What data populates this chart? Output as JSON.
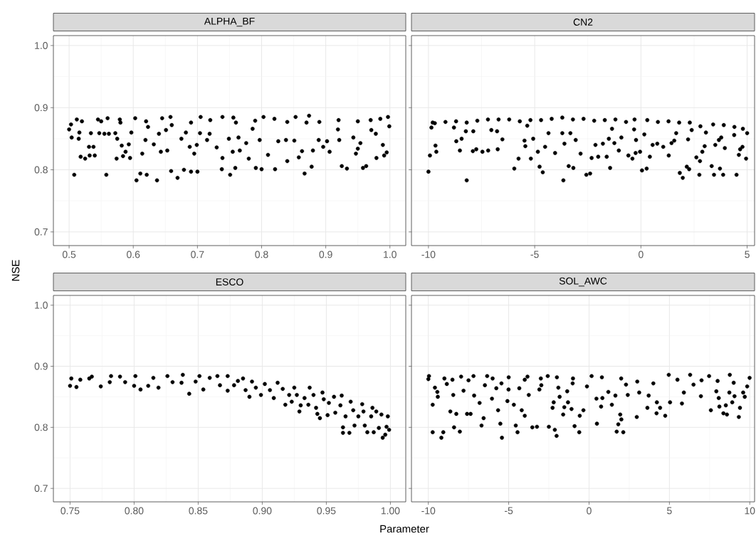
{
  "chart_data": [
    {
      "type": "scatter",
      "title": "ALPHA_BF",
      "ylabel": "NSE",
      "color": "#000000",
      "marker": "circle",
      "grid": true,
      "xlim": [
        0.4755,
        1.0247
      ],
      "ylim": [
        0.678,
        1.016
      ],
      "xticks": [
        0.5,
        0.6,
        0.7,
        0.8,
        0.9,
        {
          "value": 1,
          "label": "1.0"
        }
      ],
      "yticks": [
        0.7,
        0.8,
        0.9,
        {
          "value": 1,
          "label": "1.0"
        }
      ],
      "x": [
        0.508,
        0.5,
        0.504,
        0.503,
        0.512,
        0.516,
        0.515,
        0.518,
        0.525,
        0.531,
        0.532,
        0.534,
        0.538,
        0.54,
        0.545,
        0.547,
        0.558,
        0.555,
        0.562,
        0.56,
        0.572,
        0.575,
        0.574,
        0.579,
        0.582,
        0.584,
        0.588,
        0.593,
        0.595,
        0.597,
        0.603,
        0.605,
        0.611,
        0.614,
        0.619,
        0.621,
        0.623,
        0.632,
        0.637,
        0.64,
        0.643,
        0.645,
        0.653,
        0.651,
        0.658,
        0.659,
        0.669,
        0.675,
        0.679,
        0.682,
        0.688,
        0.69,
        0.695,
        0.7,
        0.699,
        0.704,
        0.705,
        0.715,
        0.719,
        0.73,
        0.738,
        0.739,
        0.739,
        0.749,
        0.751,
        0.755,
        0.756,
        0.759,
        0.764,
        0.766,
        0.776,
        0.78,
        0.786,
        0.791,
        0.797,
        0.8,
        0.803,
        0.81,
        0.821,
        0.826,
        0.838,
        0.84,
        0.851,
        0.853,
        0.858,
        0.863,
        0.867,
        0.874,
        0.878,
        0.88,
        0.889,
        0.896,
        0.902,
        0.906,
        0.919,
        0.921,
        0.925,
        0.933,
        0.943,
        0.947,
        0.95,
        0.954,
        0.958,
        0.963,
        0.971,
        0.979,
        0.978,
        0.989,
        0.991,
        0.995,
        0.999,
        0.997,
        0.52,
        0.55,
        0.58,
        0.62,
        0.66,
        0.69,
        0.72,
        0.76,
        0.79,
        0.82,
        0.84,
        0.87,
        0.89,
        0.92,
        0.95,
        0.97,
        0.985
      ],
      "values": [
        0.792,
        0.865,
        0.852,
        0.873,
        0.881,
        0.86,
        0.85,
        0.821,
        0.818,
        0.837,
        0.823,
        0.859,
        0.837,
        0.823,
        0.881,
        0.859,
        0.792,
        0.858,
        0.858,
        0.883,
        0.859,
        0.85,
        0.818,
        0.881,
        0.839,
        0.822,
        0.829,
        0.841,
        0.819,
        0.86,
        0.883,
        0.783,
        0.794,
        0.826,
        0.848,
        0.792,
        0.869,
        0.841,
        0.783,
        0.858,
        0.829,
        0.883,
        0.831,
        0.864,
        0.885,
        0.798,
        0.787,
        0.85,
        0.8,
        0.86,
        0.837,
        0.797,
        0.826,
        0.797,
        0.84,
        0.859,
        0.885,
        0.848,
        0.858,
        0.836,
        0.801,
        0.819,
        0.885,
        0.85,
        0.792,
        0.829,
        0.884,
        0.803,
        0.852,
        0.831,
        0.843,
        0.818,
        0.866,
        0.803,
        0.848,
        0.801,
        0.885,
        0.824,
        0.801,
        0.846,
        0.848,
        0.814,
        0.847,
        0.885,
        0.82,
        0.83,
        0.794,
        0.887,
        0.805,
        0.831,
        0.848,
        0.837,
        0.846,
        0.829,
        0.865,
        0.848,
        0.806,
        0.802,
        0.852,
        0.826,
        0.834,
        0.843,
        0.803,
        0.806,
        0.864,
        0.819,
        0.858,
        0.84,
        0.823,
        0.828,
        0.87,
        0.885,
        0.878,
        0.878,
        0.876,
        0.878,
        0.872,
        0.876,
        0.88,
        0.876,
        0.879,
        0.882,
        0.877,
        0.876,
        0.877,
        0.88,
        0.878,
        0.88,
        0.882
      ]
    },
    {
      "type": "scatter",
      "title": "CN2",
      "color": "#000000",
      "marker": "circle",
      "grid": true,
      "tick_labels": "x",
      "xlim": [
        -10.8,
        5.35
      ],
      "ylim": [
        0.678,
        1.016
      ],
      "xticks": [
        -10,
        -5,
        0,
        5
      ],
      "yticks": [
        0.7,
        0.8,
        0.9,
        1
      ],
      "x": [
        -10,
        -9.93,
        -9.86,
        -9.67,
        -9.63,
        -9.8,
        -8.8,
        -8.69,
        -8.52,
        -8.44,
        -8.24,
        -8.2,
        -7.91,
        -7.89,
        -7.75,
        -7.46,
        -7.19,
        -7.04,
        -6.74,
        -6.77,
        -6.52,
        -5.96,
        -5.76,
        -5.48,
        -5.44,
        -5.35,
        -5.18,
        -5.07,
        -4.85,
        -4.77,
        -4.62,
        -4.51,
        -4.35,
        -4.04,
        -3.7,
        -3.65,
        -3.6,
        -3.4,
        -3.32,
        -3.18,
        -3.07,
        -2.84,
        -2.57,
        -2.39,
        -2.32,
        -2.14,
        -2.01,
        -1.79,
        -1.61,
        -1.51,
        -1.45,
        -1.36,
        -1.25,
        -1.04,
        -0.92,
        -0.59,
        -0.4,
        -0.32,
        -0.23,
        -0.25,
        -0.04,
        0.05,
        0.16,
        0.27,
        0.42,
        0.55,
        0.77,
        1.05,
        1.31,
        1.44,
        1.57,
        1.66,
        1.83,
        1.97,
        2.16,
        2.27,
        2.22,
        2.39,
        2.61,
        2.78,
        2.75,
        2.89,
        3.0,
        3.06,
        3.33,
        3.44,
        3.5,
        3.67,
        3.78,
        3.72,
        3.87,
        3.95,
        4.39,
        4.5,
        4.61,
        4.67,
        4.78,
        4.95,
        5.0,
        -9.7,
        -9.2,
        -8.7,
        -8.2,
        -7.7,
        -7.2,
        -6.7,
        -6.2,
        -5.7,
        -5.2,
        -4.7,
        -4.2,
        -3.7,
        -3.2,
        -2.7,
        -2.2,
        -1.7,
        -1.2,
        -0.7,
        -0.3,
        0.3,
        0.8,
        1.3,
        1.8,
        2.3,
        2.8,
        3.4,
        3.9,
        4.4,
        4.8
      ],
      "values": [
        0.797,
        0.823,
        0.868,
        0.839,
        0.829,
        0.876,
        0.868,
        0.846,
        0.831,
        0.85,
        0.862,
        0.783,
        0.83,
        0.862,
        0.833,
        0.829,
        0.831,
        0.864,
        0.833,
        0.862,
        0.849,
        0.802,
        0.818,
        0.847,
        0.838,
        0.871,
        0.818,
        0.85,
        0.829,
        0.805,
        0.796,
        0.837,
        0.859,
        0.827,
        0.859,
        0.783,
        0.842,
        0.806,
        0.859,
        0.803,
        0.848,
        0.826,
        0.792,
        0.794,
        0.819,
        0.84,
        0.821,
        0.842,
        0.821,
        0.85,
        0.803,
        0.866,
        0.843,
        0.831,
        0.852,
        0.823,
        0.818,
        0.865,
        0.848,
        0.827,
        0.829,
        0.799,
        0.857,
        0.802,
        0.821,
        0.84,
        0.842,
        0.837,
        0.823,
        0.843,
        0.847,
        0.859,
        0.795,
        0.787,
        0.805,
        0.801,
        0.849,
        0.864,
        0.82,
        0.814,
        0.792,
        0.829,
        0.838,
        0.86,
        0.806,
        0.792,
        0.84,
        0.848,
        0.852,
        0.802,
        0.792,
        0.835,
        0.856,
        0.792,
        0.824,
        0.833,
        0.837,
        0.818,
        0.859,
        0.875,
        0.877,
        0.878,
        0.876,
        0.879,
        0.881,
        0.881,
        0.881,
        0.878,
        0.88,
        0.88,
        0.882,
        0.884,
        0.881,
        0.882,
        0.879,
        0.88,
        0.881,
        0.877,
        0.881,
        0.88,
        0.877,
        0.878,
        0.876,
        0.876,
        0.87,
        0.873,
        0.872,
        0.869,
        0.866
      ]
    },
    {
      "type": "scatter",
      "title": "ESCO",
      "xlabel": "Parameter",
      "color": "#000000",
      "marker": "circle",
      "grid": true,
      "xlim": [
        0.737,
        1.012
      ],
      "ylim": [
        0.678,
        1.016
      ],
      "xticks": [
        0.75,
        {
          "value": 0.8,
          "label": "0.80"
        },
        0.85,
        {
          "value": 0.9,
          "label": "0.90"
        },
        0.95,
        {
          "value": 1,
          "label": "1.00"
        }
      ],
      "yticks": [
        0.7,
        0.8,
        0.9,
        {
          "value": 1,
          "label": "1.0"
        }
      ],
      "x": [
        0.75,
        0.751,
        0.755,
        0.758,
        0.765,
        0.767,
        0.774,
        0.781,
        0.782,
        0.789,
        0.793,
        0.8,
        0.801,
        0.805,
        0.811,
        0.815,
        0.819,
        0.826,
        0.83,
        0.838,
        0.837,
        0.843,
        0.848,
        0.851,
        0.854,
        0.859,
        0.865,
        0.867,
        0.873,
        0.873,
        0.878,
        0.881,
        0.885,
        0.887,
        0.89,
        0.892,
        0.895,
        0.899,
        0.902,
        0.906,
        0.909,
        0.912,
        0.916,
        0.918,
        0.921,
        0.923,
        0.925,
        0.927,
        0.929,
        0.93,
        0.933,
        0.936,
        0.937,
        0.94,
        0.942,
        0.943,
        0.945,
        0.947,
        0.948,
        0.951,
        0.952,
        0.956,
        0.957,
        0.962,
        0.961,
        0.963,
        0.963,
        0.965,
        0.968,
        0.969,
        0.971,
        0.972,
        0.975,
        0.978,
        0.979,
        0.98,
        0.982,
        0.985,
        0.986,
        0.987,
        0.989,
        0.991,
        0.993,
        0.994,
        0.996,
        0.997,
        0.998,
        0.999
      ],
      "values": [
        0.868,
        0.88,
        0.866,
        0.878,
        0.88,
        0.883,
        0.867,
        0.874,
        0.884,
        0.883,
        0.874,
        0.868,
        0.884,
        0.862,
        0.868,
        0.881,
        0.865,
        0.884,
        0.874,
        0.886,
        0.873,
        0.855,
        0.875,
        0.884,
        0.862,
        0.881,
        0.884,
        0.869,
        0.884,
        0.86,
        0.869,
        0.876,
        0.88,
        0.861,
        0.85,
        0.875,
        0.865,
        0.853,
        0.871,
        0.861,
        0.848,
        0.873,
        0.863,
        0.837,
        0.853,
        0.842,
        0.865,
        0.853,
        0.826,
        0.836,
        0.848,
        0.837,
        0.865,
        0.853,
        0.832,
        0.822,
        0.815,
        0.857,
        0.846,
        0.82,
        0.84,
        0.85,
        0.824,
        0.852,
        0.836,
        0.8,
        0.791,
        0.818,
        0.791,
        0.842,
        0.828,
        0.803,
        0.818,
        0.838,
        0.826,
        0.803,
        0.792,
        0.818,
        0.832,
        0.792,
        0.826,
        0.799,
        0.821,
        0.783,
        0.788,
        0.801,
        0.818,
        0.796
      ]
    },
    {
      "type": "scatter",
      "title": "SOL_AWC",
      "color": "#000000",
      "marker": "circle",
      "grid": true,
      "tick_labels": "x",
      "xlim": [
        -11.05,
        10.3
      ],
      "ylim": [
        0.678,
        1.016
      ],
      "xticks": [
        -10,
        -5,
        0,
        5,
        10
      ],
      "yticks": [
        0.7,
        0.8,
        0.9,
        1
      ],
      "x": [
        -9.96,
        -10.0,
        -9.73,
        -9.73,
        -9.59,
        -9.41,
        -9.44,
        -9.19,
        -9.07,
        -9.0,
        -8.85,
        -8.63,
        -8.45,
        -8.4,
        -8.26,
        -8.04,
        -7.96,
        -7.81,
        -7.59,
        -7.37,
        -7.15,
        -7.19,
        -6.81,
        -6.69,
        -6.56,
        -6.48,
        -6.34,
        -6.04,
        -5.77,
        -5.66,
        -5.52,
        -5.42,
        -5.45,
        -5.08,
        -5.01,
        -4.68,
        -4.56,
        -4.45,
        -4.34,
        -4.19,
        -4.0,
        -3.83,
        -3.75,
        -3.53,
        -3.24,
        -3.09,
        -2.97,
        -2.57,
        -2.5,
        -2.27,
        -2.2,
        -2.13,
        -2.02,
        -1.91,
        -1.83,
        -1.61,
        -1.54,
        -1.31,
        -1.36,
        -1.09,
        -1.02,
        -0.9,
        -0.61,
        -0.58,
        -0.35,
        -0.13,
        0.16,
        0.49,
        0.46,
        0.75,
        0.83,
        1.2,
        1.42,
        1.64,
        1.72,
        1.82,
        1.94,
        2.01,
        2.13,
        2.3,
        2.41,
        2.97,
        3.12,
        3.63,
        3.71,
        4.22,
        4.2,
        4.42,
        4.74,
        5.04,
        4.96,
        5.78,
        5.9,
        6.29,
        6.96,
        7.47,
        7.58,
        7.92,
        8.11,
        8.07,
        8.36,
        8.58,
        8.51,
        8.73,
        8.76,
        8.91,
        9.05,
        9.32,
        9.39,
        9.59,
        9.69,
        9.84,
        9.99,
        -8.5,
        -7.5,
        -6.0,
        -5.0,
        -4.0,
        -3.0,
        -2.0,
        -1.0,
        0.8,
        2.0,
        3.0,
        4.0,
        5.5,
        6.5,
        7.0,
        8.0,
        9.0
      ],
      "values": [
        0.884,
        0.879,
        0.837,
        0.792,
        0.865,
        0.85,
        0.858,
        0.783,
        0.792,
        0.88,
        0.871,
        0.826,
        0.853,
        0.8,
        0.822,
        0.793,
        0.883,
        0.86,
        0.822,
        0.822,
        0.852,
        0.884,
        0.84,
        0.803,
        0.815,
        0.869,
        0.884,
        0.847,
        0.864,
        0.828,
        0.806,
        0.783,
        0.872,
        0.843,
        0.862,
        0.837,
        0.803,
        0.792,
        0.864,
        0.828,
        0.819,
        0.883,
        0.853,
        0.8,
        0.801,
        0.862,
        0.869,
        0.884,
        0.801,
        0.832,
        0.841,
        0.796,
        0.786,
        0.865,
        0.85,
        0.821,
        0.833,
        0.841,
        0.859,
        0.83,
        0.872,
        0.802,
        0.792,
        0.819,
        0.828,
        0.867,
        0.884,
        0.806,
        0.847,
        0.834,
        0.848,
        0.858,
        0.837,
        0.852,
        0.793,
        0.805,
        0.821,
        0.813,
        0.792,
        0.87,
        0.853,
        0.817,
        0.857,
        0.832,
        0.852,
        0.841,
        0.823,
        0.832,
        0.819,
        0.841,
        0.886,
        0.839,
        0.857,
        0.886,
        0.851,
        0.884,
        0.828,
        0.859,
        0.834,
        0.848,
        0.823,
        0.821,
        0.836,
        0.857,
        0.886,
        0.841,
        0.851,
        0.817,
        0.832,
        0.857,
        0.85,
        0.867,
        0.881,
        0.878,
        0.877,
        0.88,
        0.882,
        0.878,
        0.88,
        0.882,
        0.88,
        0.882,
        0.88,
        0.875,
        0.872,
        0.878,
        0.87,
        0.877,
        0.876,
        0.873
      ]
    }
  ]
}
